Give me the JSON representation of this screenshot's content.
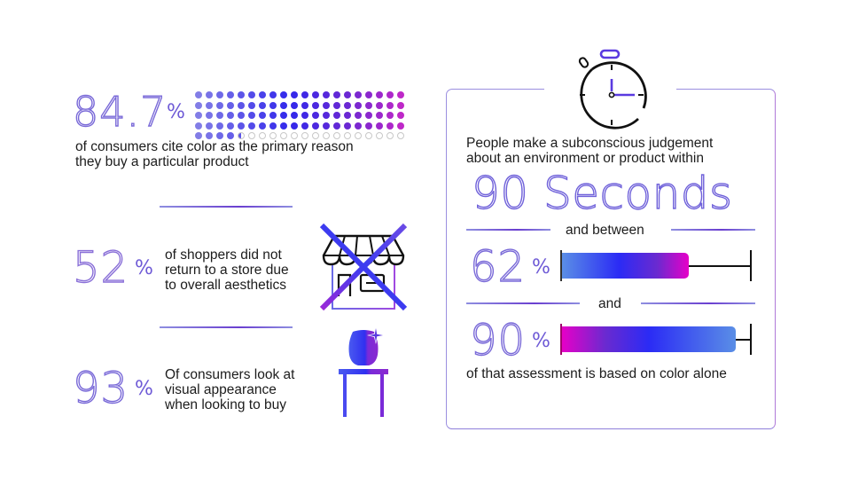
{
  "left_panel": {
    "stat1": {
      "value": "84.7",
      "unit": "%",
      "caption_line1": "of consumers cite color as the primary reason",
      "caption_line2": "they buy a particular product",
      "dot_grid": {
        "columns": 20,
        "rows": 5,
        "filled": 84.7,
        "total": 100
      }
    },
    "stat2": {
      "value": "52",
      "unit": "%",
      "caption_line1": "of shoppers did not",
      "caption_line2": "return to a store due",
      "caption_line3": "to overall aesthetics",
      "icon": "store-crossed-out-icon"
    },
    "stat3": {
      "value": "93",
      "unit": "%",
      "caption_line1": "Of consumers look at",
      "caption_line2": "visual appearance",
      "caption_line3": "when looking to buy",
      "icon": "vase-on-table-icon"
    }
  },
  "right_panel": {
    "icon": "stopwatch-icon",
    "intro_line1": "People make a subconscious judgement",
    "intro_line2": "about an environment or product within",
    "headline": "90 Seconds",
    "connector1": "and between",
    "range_low": {
      "value": "62",
      "unit": "%",
      "percent": 62
    },
    "connector2": "and",
    "range_high": {
      "value": "90",
      "unit": "%",
      "percent": 90
    },
    "footer": "of that assessment is based on color alone"
  },
  "colors": {
    "accent_blue": "#2b2bf5",
    "accent_magenta": "#e600c8",
    "accent_light_blue": "#5a8ee6",
    "outline_purple": "#7a6ad8"
  }
}
